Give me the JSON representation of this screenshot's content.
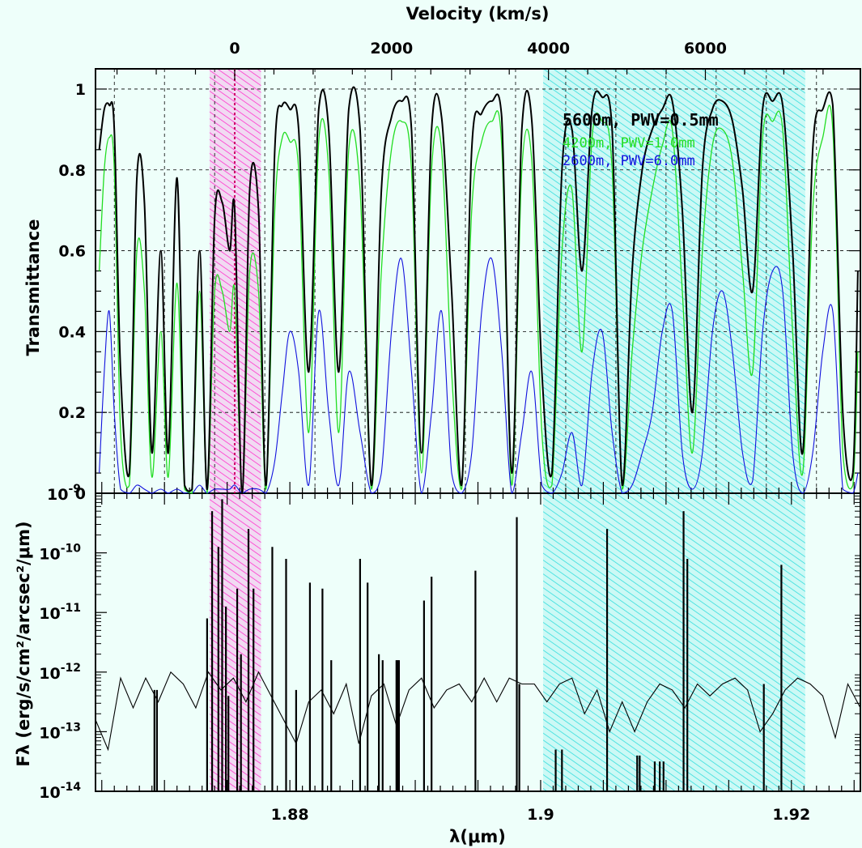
{
  "colors": {
    "background": "#eefffa",
    "black_series": "#000000",
    "green_series": "#22dd22",
    "blue_series": "#1111dd",
    "magenta_band": "#ff33cc",
    "cyan_band": "#33dddd",
    "line_marker": "#cc0066"
  },
  "top_axis": {
    "title": "Velocity (km/s)",
    "ticks": [
      "0",
      "2000",
      "4000",
      "6000"
    ],
    "tick_values": [
      0,
      2000,
      4000,
      6000
    ]
  },
  "top_panel": {
    "ylabel": "Transmittance",
    "yticks": [
      "0",
      "0.2",
      "0.4",
      "0.6",
      "0.8",
      "1"
    ]
  },
  "bottom_panel": {
    "ylabel": "Fλ (erg/s/cm²/arcsec²/μm)",
    "yticks": [
      {
        "base": "10",
        "exp": "-14"
      },
      {
        "base": "10",
        "exp": "-13"
      },
      {
        "base": "10",
        "exp": "-12"
      },
      {
        "base": "10",
        "exp": "-11"
      },
      {
        "base": "10",
        "exp": "-10"
      },
      {
        "base": "10",
        "exp": "-9"
      }
    ]
  },
  "x_axis": {
    "title": "λ(μm)",
    "ticks": [
      "1.88",
      "1.9",
      "1.92"
    ],
    "tick_values": [
      1.88,
      1.9,
      1.92
    ]
  },
  "legend": [
    {
      "label": "5600m, PWV=0.5mm",
      "color": "#000000"
    },
    {
      "label": "4200m, PWV=1.0mm",
      "color": "#22dd22"
    },
    {
      "label": "2600m, PWV=6.0mm",
      "color": "#1111dd"
    }
  ],
  "chart_data": {
    "type": "line",
    "x_range_um": [
      1.8645,
      1.9255
    ],
    "rest_wavelength_um": 1.8756,
    "velocity_axis_kms_range": [
      -1820,
      7930
    ],
    "shaded_bands_um": [
      {
        "name": "magenta",
        "from": 1.8736,
        "to": 1.8777
      },
      {
        "name": "cyan",
        "from": 1.9002,
        "to": 1.9211
      }
    ],
    "transmittance": {
      "ylim": [
        0,
        1.05
      ],
      "x": [
        1.8648,
        1.8652,
        1.8656,
        1.866,
        1.8665,
        1.8672,
        1.8678,
        1.8684,
        1.869,
        1.8697,
        1.8703,
        1.871,
        1.8716,
        1.8722,
        1.8728,
        1.8734,
        1.874,
        1.8746,
        1.8752,
        1.8756,
        1.8762,
        1.8768,
        1.8775,
        1.8781,
        1.8788,
        1.8794,
        1.88,
        1.8807,
        1.8815,
        1.8823,
        1.8831,
        1.8839,
        1.8847,
        1.8856,
        1.8865,
        1.8873,
        1.8881,
        1.8889,
        1.8897,
        1.8905,
        1.8913,
        1.8921,
        1.8929,
        1.8937,
        1.8945,
        1.8953,
        1.8961,
        1.8969,
        1.8977,
        1.8985,
        1.8993,
        1.9001,
        1.9009,
        1.9017,
        1.9025,
        1.9033,
        1.9041,
        1.9049,
        1.9057,
        1.9065,
        1.9073,
        1.9081,
        1.9089,
        1.9097,
        1.9105,
        1.9113,
        1.9121,
        1.9129,
        1.9137,
        1.9145,
        1.9153,
        1.9161,
        1.9169,
        1.9177,
        1.9185,
        1.9193,
        1.9201,
        1.9209,
        1.9217,
        1.9225,
        1.9233,
        1.9241,
        1.9249,
        1.9253
      ],
      "series": [
        {
          "name": "5600m, PWV=0.5mm",
          "values": [
            0.85,
            0.95,
            0.96,
            0.9,
            0.3,
            0.05,
            0.78,
            0.72,
            0.1,
            0.6,
            0.1,
            0.78,
            0.02,
            0.01,
            0.6,
            0.01,
            0.68,
            0.72,
            0.6,
            0.7,
            0.0,
            0.75,
            0.7,
            0.02,
            0.85,
            0.96,
            0.95,
            0.9,
            0.3,
            0.95,
            0.9,
            0.3,
            0.95,
            0.9,
            0.02,
            0.75,
            0.93,
            0.97,
            0.9,
            0.1,
            0.9,
            0.93,
            0.5,
            0.02,
            0.85,
            0.94,
            0.97,
            0.93,
            0.05,
            0.9,
            0.92,
            0.3,
            0.05,
            0.8,
            0.9,
            0.55,
            0.95,
            0.98,
            0.9,
            0.02,
            0.55,
            0.8,
            0.9,
            0.95,
            0.97,
            0.7,
            0.2,
            0.8,
            0.95,
            0.97,
            0.92,
            0.75,
            0.5,
            0.95,
            0.97,
            0.96,
            0.6,
            0.1,
            0.85,
            0.95,
            0.96,
            0.2,
            0.05,
            0.55
          ]
        },
        {
          "name": "4200m, PWV=1.0mm",
          "values": [
            0.55,
            0.8,
            0.88,
            0.8,
            0.15,
            0.02,
            0.6,
            0.5,
            0.04,
            0.4,
            0.04,
            0.52,
            0.01,
            0.0,
            0.5,
            0.0,
            0.5,
            0.5,
            0.4,
            0.5,
            0.0,
            0.55,
            0.5,
            0.01,
            0.7,
            0.88,
            0.87,
            0.8,
            0.15,
            0.87,
            0.8,
            0.15,
            0.85,
            0.75,
            0.01,
            0.55,
            0.85,
            0.92,
            0.8,
            0.05,
            0.8,
            0.85,
            0.3,
            0.01,
            0.7,
            0.87,
            0.92,
            0.86,
            0.02,
            0.8,
            0.82,
            0.15,
            0.02,
            0.6,
            0.75,
            0.35,
            0.88,
            0.92,
            0.8,
            0.01,
            0.35,
            0.6,
            0.75,
            0.86,
            0.9,
            0.5,
            0.1,
            0.6,
            0.86,
            0.9,
            0.82,
            0.55,
            0.3,
            0.88,
            0.92,
            0.9,
            0.4,
            0.05,
            0.7,
            0.88,
            0.9,
            0.1,
            0.02,
            0.35
          ]
        },
        {
          "name": "2600m, PWV=6.0mm",
          "values": [
            0.05,
            0.3,
            0.45,
            0.2,
            0.01,
            0.0,
            0.02,
            0.01,
            0.0,
            0.01,
            0.0,
            0.01,
            0.0,
            0.0,
            0.02,
            0.0,
            0.01,
            0.01,
            0.01,
            0.02,
            0.0,
            0.01,
            0.01,
            0.0,
            0.08,
            0.25,
            0.4,
            0.3,
            0.02,
            0.45,
            0.2,
            0.02,
            0.3,
            0.15,
            0.0,
            0.05,
            0.4,
            0.58,
            0.3,
            0.0,
            0.2,
            0.45,
            0.05,
            0.0,
            0.1,
            0.45,
            0.58,
            0.35,
            0.0,
            0.15,
            0.3,
            0.02,
            0.0,
            0.05,
            0.15,
            0.02,
            0.3,
            0.4,
            0.15,
            0.0,
            0.02,
            0.1,
            0.2,
            0.4,
            0.45,
            0.1,
            0.01,
            0.1,
            0.4,
            0.5,
            0.35,
            0.1,
            0.03,
            0.4,
            0.55,
            0.5,
            0.1,
            0.0,
            0.1,
            0.35,
            0.45,
            0.01,
            0.0,
            0.05
          ]
        }
      ]
    },
    "flux": {
      "ylim_log10": [
        -14,
        -9
      ],
      "continuum_log10": {
        "x": [
          1.8645,
          1.8655,
          1.8665,
          1.8675,
          1.8685,
          1.8695,
          1.8705,
          1.8715,
          1.8725,
          1.8735,
          1.8745,
          1.8755,
          1.8765,
          1.8775,
          1.8785,
          1.8795,
          1.8805,
          1.8815,
          1.8825,
          1.8835,
          1.8845,
          1.8855,
          1.8865,
          1.8875,
          1.8885,
          1.8895,
          1.8905,
          1.8915,
          1.8925,
          1.8935,
          1.8945,
          1.8955,
          1.8965,
          1.8975,
          1.8985,
          1.8995,
          1.9005,
          1.9015,
          1.9025,
          1.9035,
          1.9045,
          1.9055,
          1.9065,
          1.9075,
          1.9085,
          1.9095,
          1.9105,
          1.9115,
          1.9125,
          1.9135,
          1.9145,
          1.9155,
          1.9165,
          1.9175,
          1.9185,
          1.9195,
          1.9205,
          1.9215,
          1.9225,
          1.9235,
          1.9245,
          1.9255
        ],
        "values": [
          -12.8,
          -13.3,
          -12.1,
          -12.6,
          -12.1,
          -12.5,
          -12.0,
          -12.2,
          -12.6,
          -12.0,
          -12.3,
          -12.1,
          -12.5,
          -12.0,
          -12.4,
          -12.8,
          -13.2,
          -12.5,
          -12.3,
          -12.7,
          -12.2,
          -13.2,
          -12.4,
          -12.2,
          -12.9,
          -12.3,
          -12.1,
          -12.6,
          -12.3,
          -12.2,
          -12.5,
          -12.1,
          -12.5,
          -12.1,
          -12.2,
          -12.2,
          -12.5,
          -12.2,
          -12.1,
          -12.7,
          -12.3,
          -13.0,
          -12.5,
          -13.0,
          -12.5,
          -12.2,
          -12.3,
          -12.6,
          -12.2,
          -12.4,
          -12.2,
          -12.1,
          -12.3,
          -13.0,
          -12.7,
          -12.3,
          -12.1,
          -12.2,
          -12.4,
          -13.1,
          -12.2,
          -12.6
        ]
      },
      "emission_lines": {
        "wavelength_um": [
          1.8692,
          1.8694,
          1.8734,
          1.8738,
          1.8743,
          1.8746,
          1.8749,
          1.8751,
          1.8758,
          1.8761,
          1.8767,
          1.8771,
          1.8786,
          1.8797,
          1.8805,
          1.8816,
          1.8826,
          1.8833,
          1.8856,
          1.8862,
          1.8871,
          1.8874,
          1.8885,
          1.8886,
          1.8887,
          1.8907,
          1.8913,
          1.8948,
          1.8981,
          1.8983,
          1.9012,
          1.9017,
          1.9053,
          1.9077,
          1.9079,
          1.9091,
          1.9095,
          1.9098,
          1.9114,
          1.9117,
          1.9178,
          1.9192
        ],
        "peak_log10": [
          -12.3,
          -12.3,
          -11.1,
          -9.3,
          -9.9,
          -9.1,
          -10.9,
          -12.4,
          -10.6,
          -11.7,
          -9.6,
          -10.6,
          -9.9,
          -10.1,
          -12.3,
          -10.5,
          -10.6,
          -11.8,
          -10.1,
          -10.5,
          -11.7,
          -11.8,
          -11.8,
          -11.8,
          -11.8,
          -10.8,
          -10.4,
          -10.3,
          -9.4,
          -12.2,
          -13.3,
          -13.3,
          -9.6,
          -13.4,
          -13.4,
          -13.5,
          -13.5,
          -13.5,
          -9.3,
          -10.1,
          -12.2,
          -10.2
        ]
      }
    }
  }
}
